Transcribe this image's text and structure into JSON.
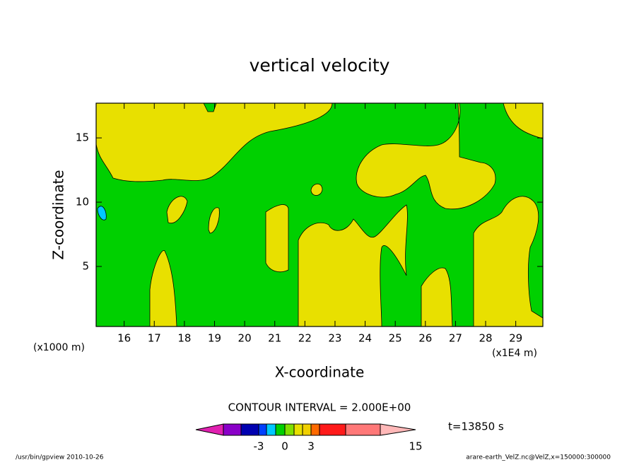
{
  "chart_data": {
    "type": "contour",
    "title": "vertical velocity",
    "xlabel": "X-coordinate",
    "ylabel": "Z-coordinate",
    "xunit_left": "(x1000 m)",
    "xunit_right": "(x1E4 m)",
    "xlim": [
      15.07,
      29.9
    ],
    "xticks": [
      16,
      17,
      18,
      19,
      20,
      21,
      22,
      23,
      24,
      25,
      26,
      27,
      28,
      29
    ],
    "ylim": [
      0.33,
      17.7
    ],
    "yticks": [
      5,
      10,
      15
    ],
    "contour_interval": "CONTOUR INTERVAL = 2.000E+00",
    "time_label": "t=13850 s",
    "colorbar": {
      "colors": [
        "#e020b0",
        "#8a00c8",
        "#0000b0",
        "#0040ff",
        "#00c8ff",
        "#00d000",
        "#80e000",
        "#e8e000",
        "#f0d000",
        "#ff6a00",
        "#ff1a1a",
        "#ff7878",
        "#ffb8b8"
      ],
      "ticks": [
        -3,
        0,
        3,
        15
      ]
    },
    "footer_left": "/usr/bin/gpview  2010-10-26",
    "footer_right": "arare-earth_VelZ.nc@VelZ,x=150000:300000"
  }
}
